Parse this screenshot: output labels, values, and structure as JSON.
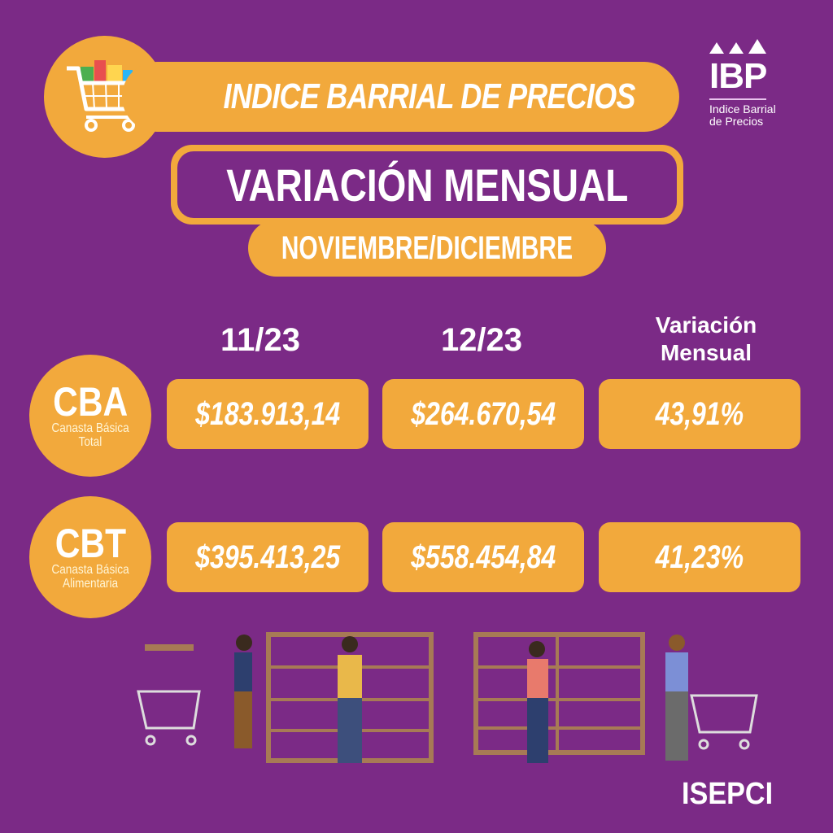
{
  "header": {
    "title": "INDICE BARRIAL DE PRECIOS",
    "subtitle": "VARIACIÓN MENSUAL",
    "period": "NOVIEMBRE/DICIEMBRE",
    "cart_icon": "shopping-cart-icon"
  },
  "logo": {
    "mark": "IBP",
    "text_line1": "Indice Barrial",
    "text_line2": "de Precios"
  },
  "table": {
    "columns": [
      "11/23",
      "12/23",
      "Variación Mensual"
    ],
    "columns_split": {
      "var_line1": "Variación",
      "var_line2": "Mensual"
    },
    "rows": [
      {
        "code": "CBA",
        "line1": "Canasta Básica",
        "line2": "Total",
        "values": [
          "$183.913,14",
          "$264.670,54",
          "43,91%"
        ]
      },
      {
        "code": "CBT",
        "line1": "Canasta Básica",
        "line2": "Alimentaria",
        "values": [
          "$395.413,25",
          "$558.454,84",
          "41,23%"
        ]
      }
    ]
  },
  "footer": {
    "brand": "ISEPCI"
  },
  "colors": {
    "background": "#7b2a86",
    "accent": "#f2a93c",
    "text": "#ffffff"
  }
}
